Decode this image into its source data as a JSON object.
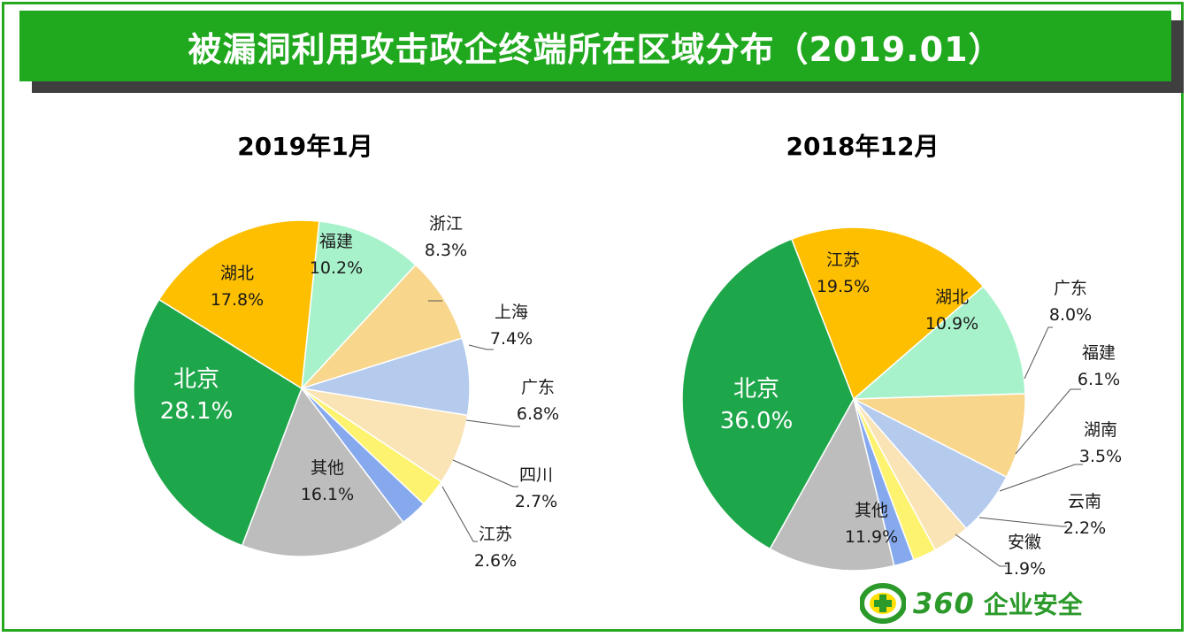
{
  "header": {
    "title": "被漏洞利用攻击政企终端所在区域分布（2019.01）"
  },
  "colors": {
    "green": "#1ea64a",
    "orange": "#fdbf00",
    "mint": "#a8f2cb",
    "sand": "#f8d68c",
    "blue": "#b4cbee",
    "cream": "#fae3b4",
    "yellow": "#fef36e",
    "cornflower": "#86a9ee",
    "gray": "#bdbdbd"
  },
  "chart_data": [
    {
      "type": "pie",
      "title": "2019年1月",
      "start_angle_deg": -84,
      "direction": "clockwise",
      "slices": [
        {
          "label": "福建",
          "value": 10.2,
          "display": "10.2%",
          "color": "mint"
        },
        {
          "label": "浙江",
          "value": 8.3,
          "display": "8.3%",
          "color": "sand"
        },
        {
          "label": "上海",
          "value": 7.4,
          "display": "7.4%",
          "color": "blue"
        },
        {
          "label": "广东",
          "value": 6.8,
          "display": "6.8%",
          "color": "cream"
        },
        {
          "label": "四川",
          "value": 2.7,
          "display": "2.7%",
          "color": "yellow"
        },
        {
          "label": "江苏",
          "value": 2.6,
          "display": "2.6%",
          "color": "cornflower"
        },
        {
          "label": "其他",
          "value": 16.1,
          "display": "16.1%",
          "color": "gray"
        },
        {
          "label": "北京",
          "value": 28.1,
          "display": "28.1%",
          "color": "green"
        },
        {
          "label": "湖北",
          "value": 17.8,
          "display": "17.8%",
          "color": "orange"
        }
      ]
    },
    {
      "type": "pie",
      "title": "2018年12月",
      "start_angle_deg": -41,
      "direction": "clockwise",
      "slices": [
        {
          "label": "湖北",
          "value": 10.9,
          "display": "10.9%",
          "color": "mint"
        },
        {
          "label": "广东",
          "value": 8.0,
          "display": "8.0%",
          "color": "sand"
        },
        {
          "label": "福建",
          "value": 6.1,
          "display": "6.1%",
          "color": "blue"
        },
        {
          "label": "湖南",
          "value": 3.5,
          "display": "3.5%",
          "color": "cream"
        },
        {
          "label": "云南",
          "value": 2.2,
          "display": "2.2%",
          "color": "yellow"
        },
        {
          "label": "安徽",
          "value": 1.9,
          "display": "1.9%",
          "color": "cornflower"
        },
        {
          "label": "其他",
          "value": 11.9,
          "display": "11.9%",
          "color": "gray"
        },
        {
          "label": "北京",
          "value": 36.0,
          "display": "36.0%",
          "color": "green"
        },
        {
          "label": "江苏",
          "value": 19.5,
          "display": "19.5%",
          "color": "orange"
        }
      ]
    }
  ],
  "logo": {
    "number": "360",
    "text": "企业安全"
  }
}
